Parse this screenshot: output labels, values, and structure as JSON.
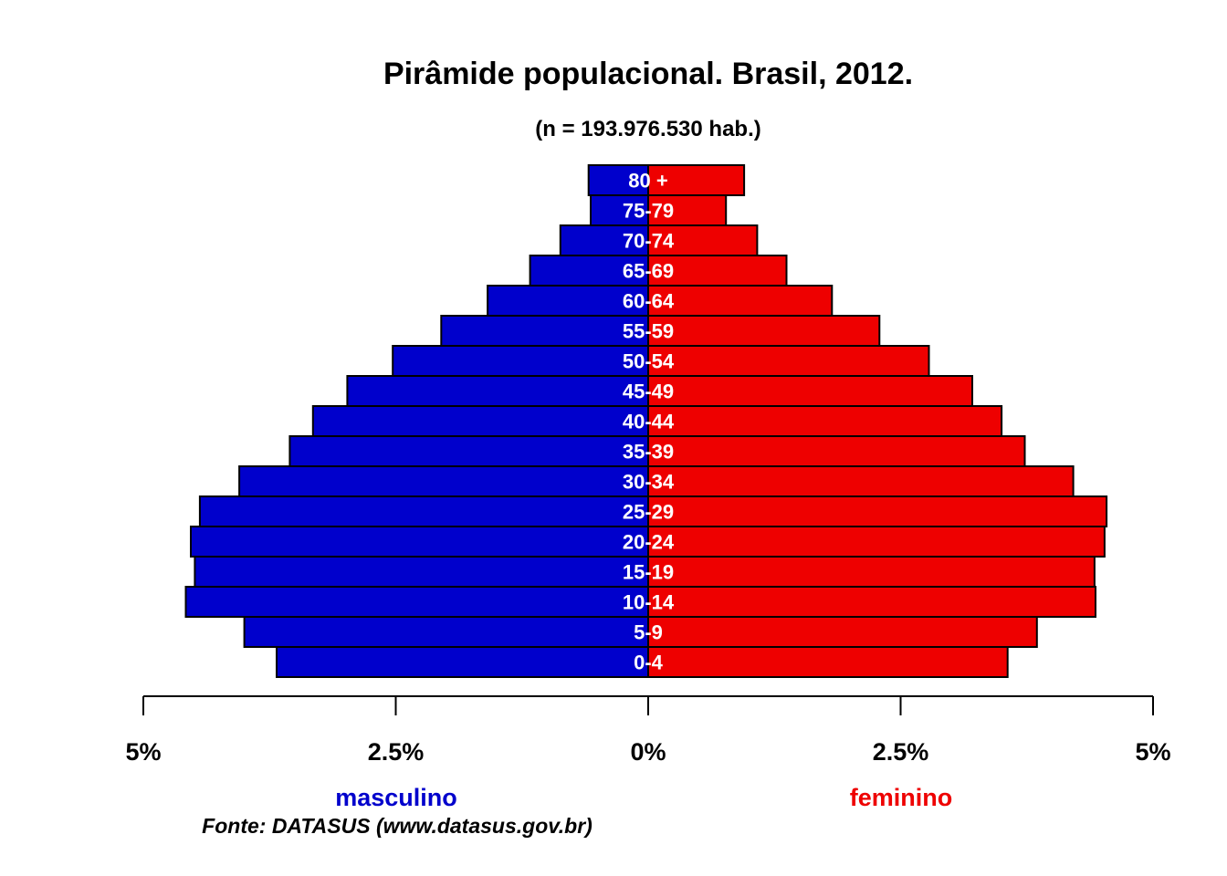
{
  "chart_data": {
    "type": "bar",
    "orientation": "horizontal-population-pyramid",
    "title": "Pirâmide populacional.  Brasil,  2012.",
    "subtitle": "(n = 193.976.530 hab.)",
    "categories": [
      "0-4",
      "5-9",
      "10-14",
      "15-19",
      "20-24",
      "25-29",
      "30-34",
      "35-39",
      "40-44",
      "45-49",
      "50-54",
      "55-59",
      "60-64",
      "65-69",
      "70-74",
      "75-79",
      "80 +"
    ],
    "series": [
      {
        "name": "masculino",
        "color": "#0000cc",
        "values": [
          3.68,
          4.0,
          4.58,
          4.49,
          4.53,
          4.44,
          4.05,
          3.55,
          3.32,
          2.98,
          2.53,
          2.05,
          1.59,
          1.17,
          0.87,
          0.57,
          0.59
        ]
      },
      {
        "name": "feminino",
        "color": "#ee0000",
        "values": [
          3.56,
          3.85,
          4.43,
          4.42,
          4.52,
          4.54,
          4.21,
          3.73,
          3.5,
          3.21,
          2.78,
          2.29,
          1.82,
          1.37,
          1.08,
          0.77,
          0.95
        ]
      }
    ],
    "xlim": [
      -5,
      5
    ],
    "x_unit": "%",
    "x_ticks": [
      {
        "value": -5,
        "label": "5%"
      },
      {
        "value": -2.5,
        "label": "2.5%"
      },
      {
        "value": 0,
        "label": "0%"
      },
      {
        "value": 2.5,
        "label": "2.5%"
      },
      {
        "value": 5,
        "label": "5%"
      }
    ],
    "grid": false,
    "legend_placement": "bottom"
  },
  "source_note": "Fonte: DATASUS (www.datasus.gov.br)"
}
